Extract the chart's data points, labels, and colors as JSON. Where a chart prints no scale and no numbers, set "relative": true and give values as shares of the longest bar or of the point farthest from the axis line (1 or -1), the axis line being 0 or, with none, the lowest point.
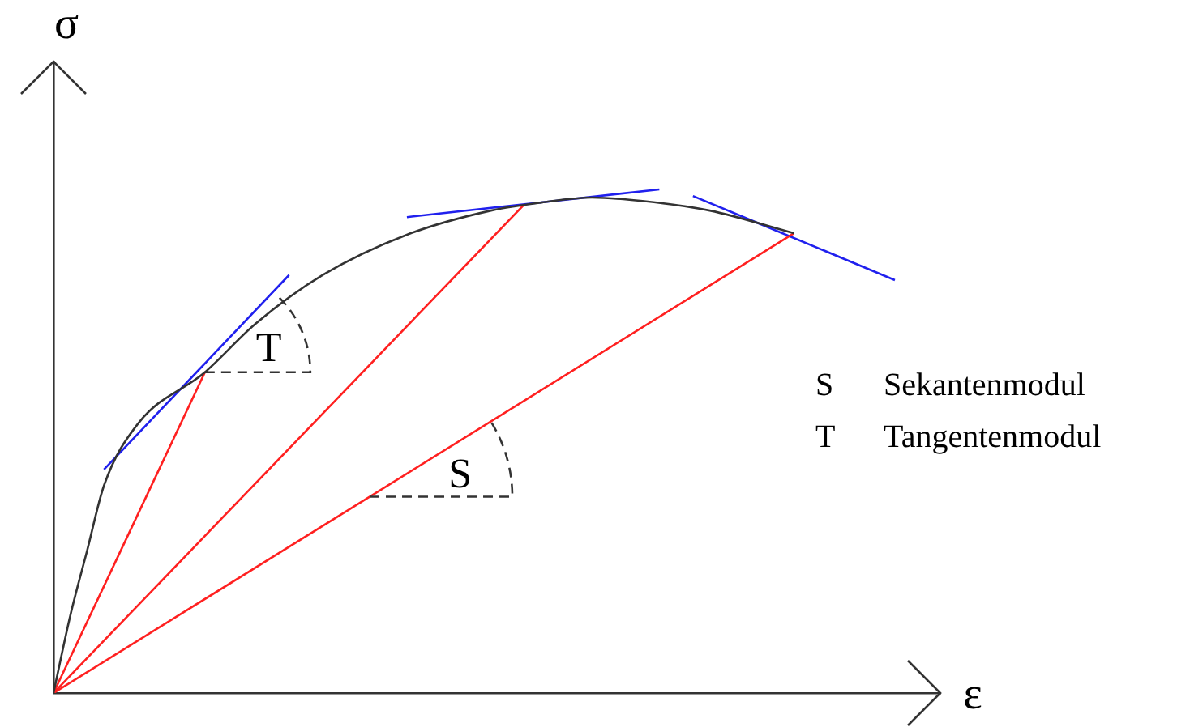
{
  "chart_data": {
    "type": "line",
    "relative": true,
    "xlabel": "ε",
    "ylabel": "σ",
    "marker": "none",
    "line_style": "solid",
    "legend": false,
    "grid": false,
    "categories": [
      null,
      null,
      null,
      null,
      null,
      null,
      null,
      null,
      null,
      null,
      null,
      null,
      null,
      null,
      null,
      null,
      null,
      null,
      null,
      null,
      null,
      null,
      null,
      null,
      null,
      null,
      null,
      null,
      null,
      null,
      null,
      null,
      null,
      null,
      null,
      null,
      null,
      null,
      null,
      null,
      null,
      null,
      null,
      null,
      null,
      null,
      null,
      null,
      null,
      null,
      null
    ],
    "series": [
      {
        "color": "#333333",
        "values": [
          0,
          0.154,
          0.283,
          0.412,
          null,
          0.534,
          null,
          null,
          null,
          0.637,
          null,
          null,
          0.733,
          null,
          null,
          null,
          0.83,
          null,
          null,
          null,
          null,
          0.91,
          null,
          null,
          null,
          null,
          0.958,
          null,
          null,
          0.974,
          null,
          null,
          0.984,
          null,
          null,
          0.977,
          null,
          null,
          null,
          0.958,
          null,
          null,
          null,
          null,
          0.913,
          null,
          null,
          null,
          null,
          null,
          null
        ]
      },
      {
        "color": "#ff2020",
        "values": [
          0,
          null,
          null,
          null,
          null,
          null,
          null,
          null,
          null,
          0.637,
          null,
          null,
          null,
          null,
          null,
          null,
          null,
          null,
          null,
          null,
          null,
          null,
          null,
          null,
          null,
          null,
          null,
          null,
          null,
          null,
          null,
          null,
          null,
          null,
          null,
          null,
          null,
          null,
          null,
          null,
          null,
          null,
          null,
          null,
          null,
          null,
          null,
          null,
          null,
          null,
          null
        ]
      },
      {
        "color": "#ff2020",
        "values": [
          0,
          null,
          null,
          null,
          null,
          null,
          null,
          null,
          null,
          null,
          null,
          null,
          null,
          null,
          null,
          null,
          null,
          null,
          null,
          null,
          null,
          null,
          null,
          null,
          null,
          null,
          null,
          null,
          0.971,
          null,
          null,
          null,
          null,
          null,
          null,
          null,
          null,
          null,
          null,
          null,
          null,
          null,
          null,
          null,
          null,
          null,
          null,
          null,
          null,
          null,
          null
        ]
      },
      {
        "color": "#ff2020",
        "values": [
          0,
          null,
          null,
          null,
          null,
          null,
          null,
          null,
          null,
          null,
          null,
          null,
          null,
          null,
          null,
          null,
          null,
          null,
          null,
          null,
          null,
          null,
          null,
          null,
          null,
          null,
          null,
          null,
          null,
          null,
          null,
          null,
          null,
          null,
          null,
          null,
          null,
          null,
          null,
          null,
          null,
          null,
          null,
          null,
          0.913,
          null,
          null,
          null,
          null,
          null,
          null
        ]
      },
      {
        "color": "#2020ee",
        "values": [
          null,
          null,
          null,
          0.444,
          null,
          null,
          null,
          null,
          null,
          null,
          null,
          null,
          null,
          null,
          0.83,
          null,
          null,
          null,
          null,
          null,
          null,
          null,
          null,
          null,
          null,
          null,
          null,
          null,
          null,
          null,
          null,
          null,
          null,
          null,
          null,
          null,
          null,
          null,
          null,
          null,
          null,
          null,
          null,
          null,
          null,
          null,
          null,
          null,
          null,
          null,
          null
        ]
      },
      {
        "color": "#2020ee",
        "values": [
          null,
          null,
          null,
          null,
          null,
          null,
          null,
          null,
          null,
          null,
          null,
          null,
          null,
          null,
          null,
          null,
          null,
          null,
          null,
          null,
          null,
          0.945,
          null,
          null,
          null,
          null,
          null,
          null,
          null,
          null,
          null,
          null,
          null,
          null,
          null,
          null,
          1,
          null,
          null,
          null,
          null,
          null,
          null,
          null,
          null,
          null,
          null,
          null,
          null,
          null,
          null
        ]
      },
      {
        "color": "#2020ee",
        "values": [
          null,
          null,
          null,
          null,
          null,
          null,
          null,
          null,
          null,
          null,
          null,
          null,
          null,
          null,
          null,
          null,
          null,
          null,
          null,
          null,
          null,
          null,
          null,
          null,
          null,
          null,
          null,
          null,
          null,
          null,
          null,
          null,
          null,
          null,
          null,
          null,
          null,
          null,
          0.987,
          null,
          null,
          null,
          null,
          null,
          null,
          null,
          null,
          null,
          null,
          null,
          0.82
        ]
      }
    ],
    "annotations": [
      "T",
      "S",
      "S Sekantenmodul",
      "T Tangentenmodul"
    ]
  }
}
